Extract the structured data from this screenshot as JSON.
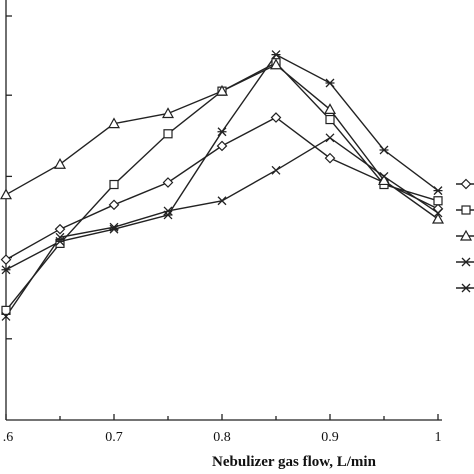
{
  "chart_data": {
    "type": "line",
    "xlabel": "Nebulizer gas flow, L/min",
    "ylabel": "",
    "title": "",
    "xlim": [
      0.6,
      1.0
    ],
    "x_ticks": [
      ".6",
      "0.7",
      "0.8",
      "0.9",
      "1"
    ],
    "x": [
      0.6,
      0.65,
      0.7,
      0.75,
      0.8,
      0.85,
      0.9,
      0.95,
      1.0
    ],
    "ylim": [
      0,
      100
    ],
    "legend_position": "right",
    "series": [
      {
        "marker": "diamond",
        "values": [
          39.5,
          47,
          53,
          58.5,
          67.5,
          74.5,
          64.5,
          58.5,
          52
        ]
      },
      {
        "marker": "square",
        "values": [
          27,
          43.5,
          58,
          70.5,
          81,
          88,
          74,
          58,
          54
        ]
      },
      {
        "marker": "triangle",
        "values": [
          55.5,
          63,
          73,
          75.5,
          81,
          87.5,
          76.5,
          59,
          49.5
        ]
      },
      {
        "marker": "x",
        "values": [
          25.5,
          45,
          47.5,
          51.5,
          54,
          61.5,
          69.5,
          60,
          51
        ]
      },
      {
        "marker": "asterisk",
        "values": [
          37,
          44,
          47,
          50.5,
          71,
          90,
          83,
          66.5,
          56.5
        ]
      }
    ]
  }
}
